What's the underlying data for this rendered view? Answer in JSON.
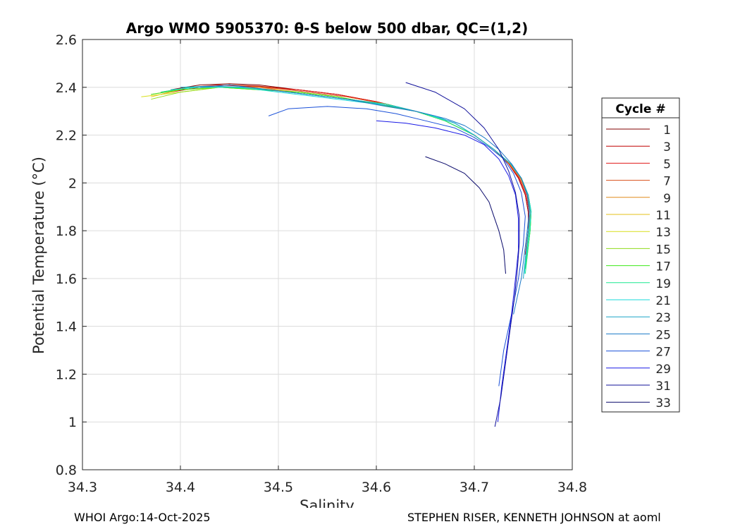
{
  "chart_data": {
    "type": "line",
    "title": "Argo WMO 5905370: θ-S below 500 dbar,  QC=(1,2)",
    "xlabel": "Salinity",
    "ylabel": "Potential Temperature (°C)",
    "xlim": [
      34.3,
      34.8
    ],
    "ylim": [
      0.8,
      2.6
    ],
    "x_ticks": [
      "34.3",
      "34.4",
      "34.5",
      "34.6",
      "34.7",
      "34.8"
    ],
    "y_ticks": [
      "0.8",
      "1",
      "1.2",
      "1.4",
      "1.6",
      "1.8",
      "2",
      "2.2",
      "2.4",
      "2.6"
    ],
    "grid": true,
    "legend_title": "Cycle #",
    "legend_position": "right",
    "series": [
      {
        "name": "1",
        "color": "#800000",
        "x": [
          34.39,
          34.42,
          34.45,
          34.48,
          34.52,
          34.56,
          34.6,
          34.64,
          34.67,
          34.7,
          34.72,
          34.735,
          34.745,
          34.752,
          34.755,
          34.755,
          34.753
        ],
        "y": [
          2.39,
          2.41,
          2.415,
          2.41,
          2.39,
          2.37,
          2.34,
          2.3,
          2.26,
          2.2,
          2.14,
          2.08,
          2.02,
          1.95,
          1.88,
          1.8,
          1.72
        ]
      },
      {
        "name": "3",
        "color": "#c00000",
        "x": [
          34.39,
          34.42,
          34.45,
          34.48,
          34.52,
          34.56,
          34.6,
          34.64,
          34.67,
          34.7,
          34.72,
          34.735,
          34.745,
          34.752,
          34.755,
          34.755,
          34.752
        ],
        "y": [
          2.38,
          2.4,
          2.41,
          2.405,
          2.39,
          2.37,
          2.34,
          2.3,
          2.26,
          2.2,
          2.14,
          2.08,
          2.02,
          1.95,
          1.88,
          1.8,
          1.7
        ]
      },
      {
        "name": "5",
        "color": "#e01a1a",
        "x": [
          34.38,
          34.41,
          34.44,
          34.48,
          34.52,
          34.56,
          34.6,
          34.64,
          34.67,
          34.7,
          34.72,
          34.735,
          34.746,
          34.753,
          34.756,
          34.755,
          34.752
        ],
        "y": [
          2.37,
          2.4,
          2.41,
          2.4,
          2.39,
          2.37,
          2.34,
          2.3,
          2.26,
          2.2,
          2.14,
          2.08,
          2.02,
          1.95,
          1.88,
          1.8,
          1.7
        ]
      },
      {
        "name": "7",
        "color": "#d84f1a",
        "x": [
          34.38,
          34.41,
          34.45,
          34.49,
          34.53,
          34.57,
          34.61,
          34.64,
          34.67,
          34.7,
          34.72,
          34.736,
          34.747,
          34.754,
          34.757,
          34.756,
          34.752
        ],
        "y": [
          2.38,
          2.4,
          2.41,
          2.4,
          2.38,
          2.36,
          2.33,
          2.3,
          2.26,
          2.2,
          2.14,
          2.08,
          2.02,
          1.95,
          1.88,
          1.8,
          1.68
        ]
      },
      {
        "name": "9",
        "color": "#e08a1a",
        "x": [
          34.37,
          34.4,
          34.44,
          34.48,
          34.52,
          34.56,
          34.6,
          34.64,
          34.67,
          34.7,
          34.72,
          34.736,
          34.747,
          34.754,
          34.757,
          34.756,
          34.752
        ],
        "y": [
          2.37,
          2.39,
          2.4,
          2.4,
          2.38,
          2.36,
          2.33,
          2.3,
          2.26,
          2.2,
          2.14,
          2.08,
          2.02,
          1.95,
          1.88,
          1.8,
          1.68
        ]
      },
      {
        "name": "11",
        "color": "#e6c21a",
        "x": [
          34.37,
          34.4,
          34.44,
          34.48,
          34.52,
          34.56,
          34.6,
          34.64,
          34.67,
          34.7,
          34.72,
          34.737,
          34.748,
          34.755,
          34.758,
          34.757,
          34.753
        ],
        "y": [
          2.36,
          2.39,
          2.4,
          2.395,
          2.38,
          2.36,
          2.33,
          2.3,
          2.26,
          2.2,
          2.14,
          2.08,
          2.02,
          1.95,
          1.88,
          1.8,
          1.66
        ]
      },
      {
        "name": "13",
        "color": "#d8df1a",
        "x": [
          34.36,
          34.4,
          34.44,
          34.48,
          34.52,
          34.56,
          34.6,
          34.64,
          34.67,
          34.7,
          34.72,
          34.737,
          34.748,
          34.755,
          34.758,
          34.757,
          34.753
        ],
        "y": [
          2.36,
          2.38,
          2.4,
          2.39,
          2.38,
          2.36,
          2.33,
          2.3,
          2.26,
          2.2,
          2.14,
          2.08,
          2.02,
          1.95,
          1.88,
          1.8,
          1.66
        ]
      },
      {
        "name": "15",
        "color": "#8fdc1a",
        "x": [
          34.37,
          34.4,
          34.44,
          34.48,
          34.52,
          34.56,
          34.6,
          34.64,
          34.67,
          34.7,
          34.72,
          34.737,
          34.748,
          34.755,
          34.758,
          34.757,
          34.752
        ],
        "y": [
          2.35,
          2.38,
          2.4,
          2.39,
          2.38,
          2.36,
          2.33,
          2.3,
          2.26,
          2.2,
          2.14,
          2.08,
          2.02,
          1.95,
          1.88,
          1.8,
          1.64
        ]
      },
      {
        "name": "17",
        "color": "#3ee81a",
        "x": [
          34.37,
          34.4,
          34.44,
          34.48,
          34.52,
          34.56,
          34.6,
          34.64,
          34.67,
          34.7,
          34.72,
          34.737,
          34.748,
          34.755,
          34.758,
          34.757,
          34.752
        ],
        "y": [
          2.37,
          2.39,
          2.4,
          2.39,
          2.38,
          2.36,
          2.33,
          2.3,
          2.26,
          2.2,
          2.14,
          2.08,
          2.02,
          1.95,
          1.88,
          1.8,
          1.64
        ]
      },
      {
        "name": "19",
        "color": "#1ae890",
        "x": [
          34.38,
          34.41,
          34.45,
          34.49,
          34.53,
          34.57,
          34.61,
          34.64,
          34.67,
          34.7,
          34.72,
          34.737,
          34.748,
          34.755,
          34.758,
          34.757,
          34.752
        ],
        "y": [
          2.38,
          2.4,
          2.4,
          2.39,
          2.37,
          2.35,
          2.33,
          2.3,
          2.26,
          2.2,
          2.14,
          2.08,
          2.02,
          1.95,
          1.88,
          1.8,
          1.62
        ]
      },
      {
        "name": "21",
        "color": "#1ad8d8",
        "x": [
          34.39,
          34.42,
          34.46,
          34.5,
          34.54,
          34.58,
          34.62,
          34.65,
          34.68,
          34.7,
          34.72,
          34.737,
          34.748,
          34.755,
          34.758,
          34.756,
          34.751
        ],
        "y": [
          2.39,
          2.4,
          2.4,
          2.38,
          2.36,
          2.34,
          2.32,
          2.29,
          2.25,
          2.2,
          2.14,
          2.08,
          2.02,
          1.95,
          1.88,
          1.8,
          1.62
        ]
      },
      {
        "name": "23",
        "color": "#1aa6c8",
        "x": [
          34.4,
          34.43,
          34.47,
          34.51,
          34.55,
          34.59,
          34.63,
          34.66,
          34.68,
          34.7,
          34.72,
          34.737,
          34.748,
          34.755,
          34.757,
          34.755,
          34.75
        ],
        "y": [
          2.4,
          2.405,
          2.4,
          2.38,
          2.36,
          2.34,
          2.31,
          2.28,
          2.25,
          2.2,
          2.14,
          2.08,
          2.02,
          1.95,
          1.88,
          1.8,
          1.6
        ]
      },
      {
        "name": "25",
        "color": "#1a78c8",
        "x": [
          34.42,
          34.45,
          34.49,
          34.53,
          34.57,
          34.61,
          34.64,
          34.67,
          34.69,
          34.71,
          34.725,
          34.738,
          34.748,
          34.754,
          34.756,
          34.754,
          34.748,
          34.74
        ],
        "y": [
          2.4,
          2.41,
          2.39,
          2.37,
          2.35,
          2.32,
          2.3,
          2.27,
          2.24,
          2.19,
          2.14,
          2.08,
          2.02,
          1.95,
          1.88,
          1.8,
          1.6,
          1.45
        ]
      },
      {
        "name": "27",
        "color": "#1a50d8",
        "x": [
          34.49,
          34.51,
          34.55,
          34.59,
          34.62,
          34.65,
          34.68,
          34.7,
          34.715,
          34.73,
          34.74,
          34.748,
          34.752,
          34.75,
          34.745,
          34.738,
          34.73,
          34.725
        ],
        "y": [
          2.28,
          2.31,
          2.32,
          2.31,
          2.29,
          2.26,
          2.23,
          2.19,
          2.15,
          2.1,
          2.04,
          1.96,
          1.86,
          1.74,
          1.6,
          1.45,
          1.3,
          1.15
        ]
      },
      {
        "name": "29",
        "color": "#1a1ae6",
        "x": [
          34.6,
          34.63,
          34.66,
          34.69,
          34.71,
          34.725,
          34.735,
          34.742,
          34.745,
          34.745,
          34.742,
          34.738,
          34.733,
          34.728,
          34.724
        ],
        "y": [
          2.26,
          2.25,
          2.23,
          2.2,
          2.16,
          2.1,
          2.03,
          1.95,
          1.85,
          1.72,
          1.6,
          1.45,
          1.3,
          1.15,
          1.0
        ]
      },
      {
        "name": "31",
        "color": "#10109a",
        "x": [
          34.63,
          34.66,
          34.69,
          34.71,
          34.725,
          34.735,
          34.742,
          34.746,
          34.746,
          34.744,
          34.741,
          34.737,
          34.732,
          34.727,
          34.721
        ],
        "y": [
          2.42,
          2.38,
          2.31,
          2.23,
          2.14,
          2.05,
          1.96,
          1.86,
          1.75,
          1.64,
          1.52,
          1.4,
          1.25,
          1.1,
          0.98
        ]
      },
      {
        "name": "33",
        "color": "#08086a",
        "x": [
          34.65,
          34.67,
          34.69,
          34.705,
          34.715,
          34.72,
          34.725,
          34.73,
          34.732
        ],
        "y": [
          2.11,
          2.08,
          2.04,
          1.98,
          1.92,
          1.86,
          1.8,
          1.72,
          1.62
        ]
      }
    ]
  },
  "footer": {
    "left": "WHOI Argo:14-Oct-2025",
    "right": "STEPHEN RISER, KENNETH JOHNSON at aoml"
  }
}
